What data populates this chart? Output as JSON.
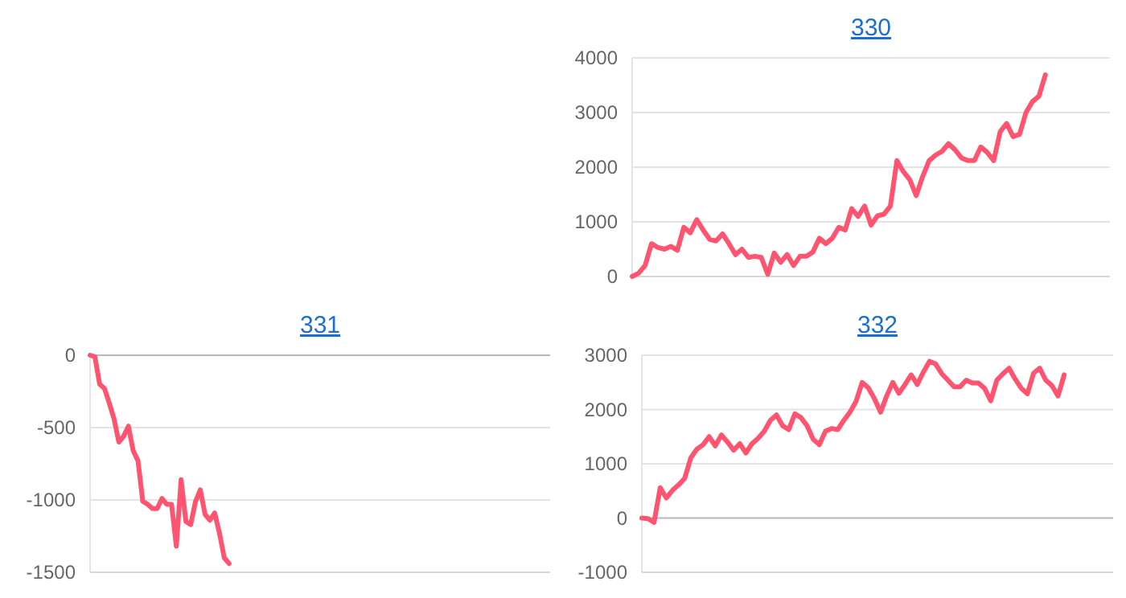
{
  "chart_data": [
    {
      "type": "line",
      "title": "330",
      "grid": "y",
      "ylim": [
        0,
        4000
      ],
      "yticks": [
        0,
        1000,
        2000,
        3000,
        4000
      ],
      "tick_labels": "y",
      "categories": [
        null,
        null,
        null,
        null,
        null,
        null,
        null,
        null,
        null,
        null,
        null,
        null,
        null,
        null,
        null,
        null,
        null,
        null,
        null,
        null,
        null,
        null,
        null,
        null,
        null,
        null,
        null,
        null,
        null,
        null,
        null,
        null,
        null,
        null,
        null,
        null,
        null,
        null,
        null,
        null,
        null,
        null,
        null,
        null,
        null,
        null,
        null,
        null,
        null,
        null,
        null,
        null,
        null,
        null,
        null,
        null,
        null,
        null,
        null,
        null,
        null,
        null,
        null,
        null,
        null,
        null,
        null,
        null,
        null,
        null,
        null,
        null,
        null,
        null,
        null
      ],
      "series": [
        {
          "color": "#ff5470",
          "values": [
            0,
            60,
            200,
            600,
            530,
            500,
            550,
            480,
            900,
            800,
            1040,
            850,
            680,
            650,
            780,
            600,
            400,
            500,
            350,
            370,
            350,
            40,
            430,
            260,
            400,
            200,
            370,
            370,
            450,
            700,
            600,
            700,
            900,
            850,
            1240,
            1100,
            1290,
            940,
            1110,
            1140,
            1290,
            2120,
            1920,
            1770,
            1480,
            1830,
            2120,
            2220,
            2290,
            2430,
            2320,
            2170,
            2120,
            2120,
            2370,
            2270,
            2120,
            2650,
            2800,
            2560,
            2600,
            3000,
            3200,
            3300,
            3690,
            null,
            null,
            null,
            null,
            null,
            null,
            null,
            null,
            null,
            null
          ]
        }
      ]
    },
    {
      "type": "line",
      "title": "331",
      "grid": "y",
      "ylim": [
        -1500,
        0
      ],
      "yticks": [
        -1500,
        -1000,
        -500,
        0
      ],
      "tick_labels": "y",
      "categories": [
        null,
        null,
        null,
        null,
        null,
        null,
        null,
        null,
        null,
        null,
        null,
        null,
        null,
        null,
        null,
        null,
        null,
        null,
        null,
        null,
        null,
        null,
        null,
        null,
        null,
        null,
        null,
        null,
        null,
        null,
        null,
        null,
        null,
        null,
        null,
        null,
        null,
        null,
        null,
        null,
        null,
        null,
        null,
        null,
        null,
        null,
        null,
        null,
        null,
        null,
        null,
        null,
        null,
        null,
        null,
        null,
        null,
        null,
        null,
        null,
        null,
        null,
        null,
        null,
        null,
        null,
        null,
        null,
        null,
        null,
        null,
        null,
        null,
        null,
        null,
        null,
        null,
        null,
        null,
        null,
        null,
        null,
        null,
        null,
        null,
        null,
        null,
        null,
        null,
        null,
        null,
        null,
        null,
        null,
        null,
        null,
        null
      ],
      "series": [
        {
          "color": "#ff5470",
          "values": [
            0,
            -10,
            -200,
            -230,
            -330,
            -440,
            -600,
            -560,
            -490,
            -660,
            -730,
            -1010,
            -1030,
            -1060,
            -1060,
            -990,
            -1030,
            -1030,
            -1320,
            -860,
            -1150,
            -1170,
            -1010,
            -930,
            -1100,
            -1140,
            -1090,
            -1230,
            -1400,
            -1440,
            null,
            null,
            null,
            null,
            null,
            null,
            null,
            null,
            null,
            null,
            null,
            null,
            null,
            null,
            null,
            null,
            null,
            null,
            null,
            null,
            null,
            null,
            null,
            null,
            null,
            null,
            null,
            null,
            null,
            null,
            null,
            null,
            null,
            null,
            null,
            null,
            null,
            null,
            null,
            null,
            null,
            null,
            null,
            null,
            null,
            null,
            null,
            null,
            null,
            null,
            null,
            null,
            null,
            null,
            null,
            null,
            null,
            null,
            null,
            null,
            null,
            null,
            null,
            null,
            null,
            null,
            null
          ]
        }
      ]
    },
    {
      "type": "line",
      "title": "332",
      "grid": "y",
      "ylim": [
        -1000,
        3000
      ],
      "yticks": [
        -1000,
        0,
        1000,
        2000,
        3000
      ],
      "tick_labels": "y",
      "categories": [
        null,
        null,
        null,
        null,
        null,
        null,
        null,
        null,
        null,
        null,
        null,
        null,
        null,
        null,
        null,
        null,
        null,
        null,
        null,
        null,
        null,
        null,
        null,
        null,
        null,
        null,
        null,
        null,
        null,
        null,
        null,
        null,
        null,
        null,
        null,
        null,
        null,
        null,
        null,
        null,
        null,
        null,
        null,
        null,
        null,
        null,
        null,
        null,
        null,
        null,
        null,
        null,
        null,
        null,
        null,
        null,
        null,
        null,
        null,
        null,
        null,
        null,
        null,
        null,
        null,
        null,
        null,
        null,
        null,
        null,
        null,
        null,
        null,
        null,
        null,
        null,
        null,
        null
      ],
      "series": [
        {
          "color": "#ff5470",
          "values": [
            0,
            -10,
            -80,
            560,
            370,
            510,
            610,
            730,
            1110,
            1270,
            1350,
            1500,
            1330,
            1530,
            1400,
            1250,
            1370,
            1200,
            1370,
            1470,
            1600,
            1800,
            1900,
            1700,
            1630,
            1920,
            1850,
            1700,
            1450,
            1350,
            1600,
            1650,
            1630,
            1800,
            1950,
            2150,
            2500,
            2400,
            2200,
            1950,
            2250,
            2500,
            2300,
            2460,
            2640,
            2460,
            2690,
            2890,
            2840,
            2660,
            2540,
            2420,
            2420,
            2540,
            2490,
            2490,
            2390,
            2160,
            2540,
            2660,
            2760,
            2560,
            2390,
            2290,
            2670,
            2760,
            2540,
            2440,
            2250,
            2640,
            null,
            null,
            null,
            null,
            null,
            null,
            null,
            null
          ]
        }
      ]
    }
  ]
}
